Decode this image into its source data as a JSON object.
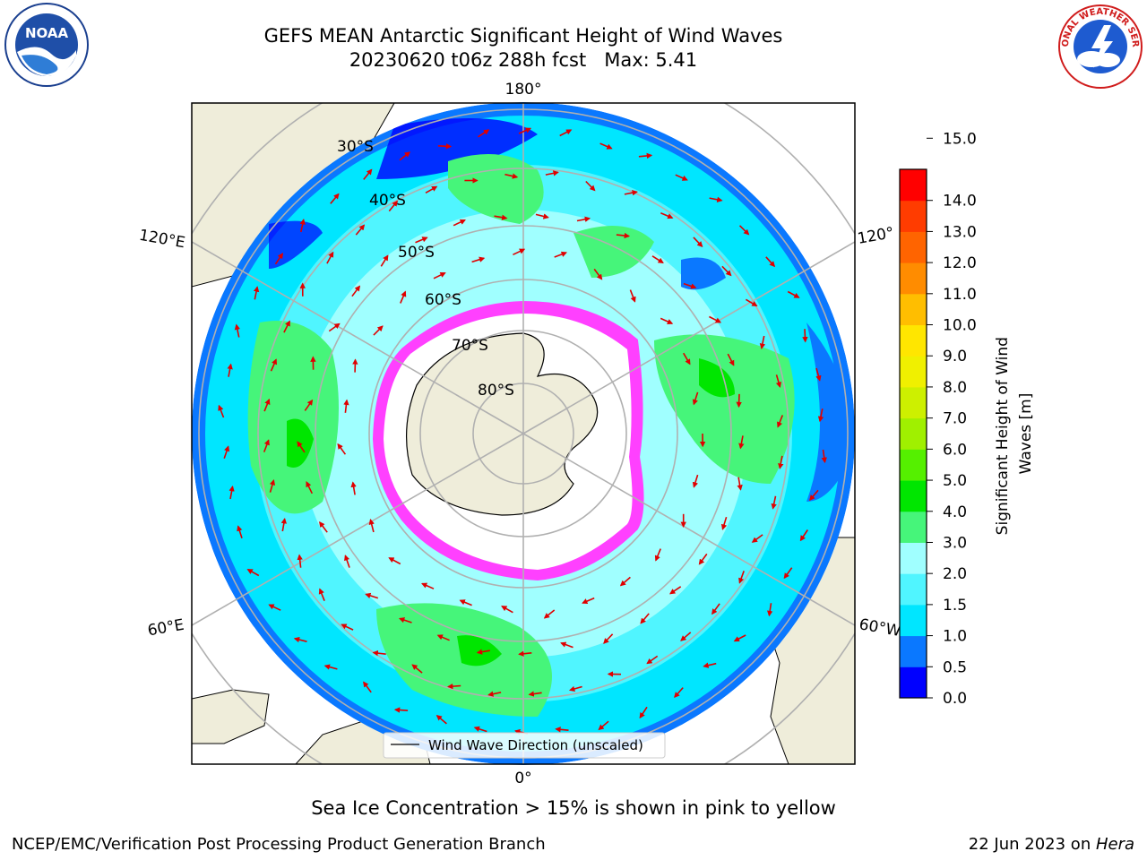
{
  "title": {
    "line1": "GEFS MEAN Antarctic Significant Height of Wind Waves",
    "line2": "20230620 t06z 288h fcst   Max: 5.41"
  },
  "map": {
    "projection": "south-polar-stereographic",
    "longitude_labels": [
      "180°",
      "120°E",
      "120°",
      "60°E",
      "60°W",
      "0°"
    ],
    "latitude_labels": [
      "30°S",
      "40°S",
      "50°S",
      "60°S",
      "70°S",
      "80°S"
    ],
    "legend_label": "Wind Wave Direction (unscaled)",
    "arrow_color": "#e00000"
  },
  "colorbar": {
    "label": "Significant Height of Wind Waves [m]",
    "tick_labels": [
      "0.0",
      "0.5",
      "1.0",
      "1.5",
      "2.0",
      "3.0",
      "4.0",
      "5.0",
      "6.0",
      "7.0",
      "8.0",
      "9.0",
      "10.0",
      "11.0",
      "12.0",
      "13.0",
      "14.0",
      "15.0"
    ],
    "colors": [
      "#0000ff",
      "#0a78ff",
      "#00e6ff",
      "#50f5ff",
      "#a0ffff",
      "#46f57a",
      "#00e600",
      "#55f000",
      "#a0f000",
      "#cdf000",
      "#f0f000",
      "#ffe600",
      "#ffbe00",
      "#ff8c00",
      "#ff6400",
      "#ff3c00",
      "#ff0000"
    ]
  },
  "caption": "Sea Ice Concentration > 15% is shown in pink to yellow",
  "footer": {
    "left": "NCEP/EMC/Verification Post Processing Product Generation Branch",
    "right_prefix": "22 Jun 2023 on ",
    "right_machine": "Hera"
  },
  "logos": {
    "noaa": "NOAA",
    "nws": "NATIONAL WEATHER SERVICE"
  }
}
